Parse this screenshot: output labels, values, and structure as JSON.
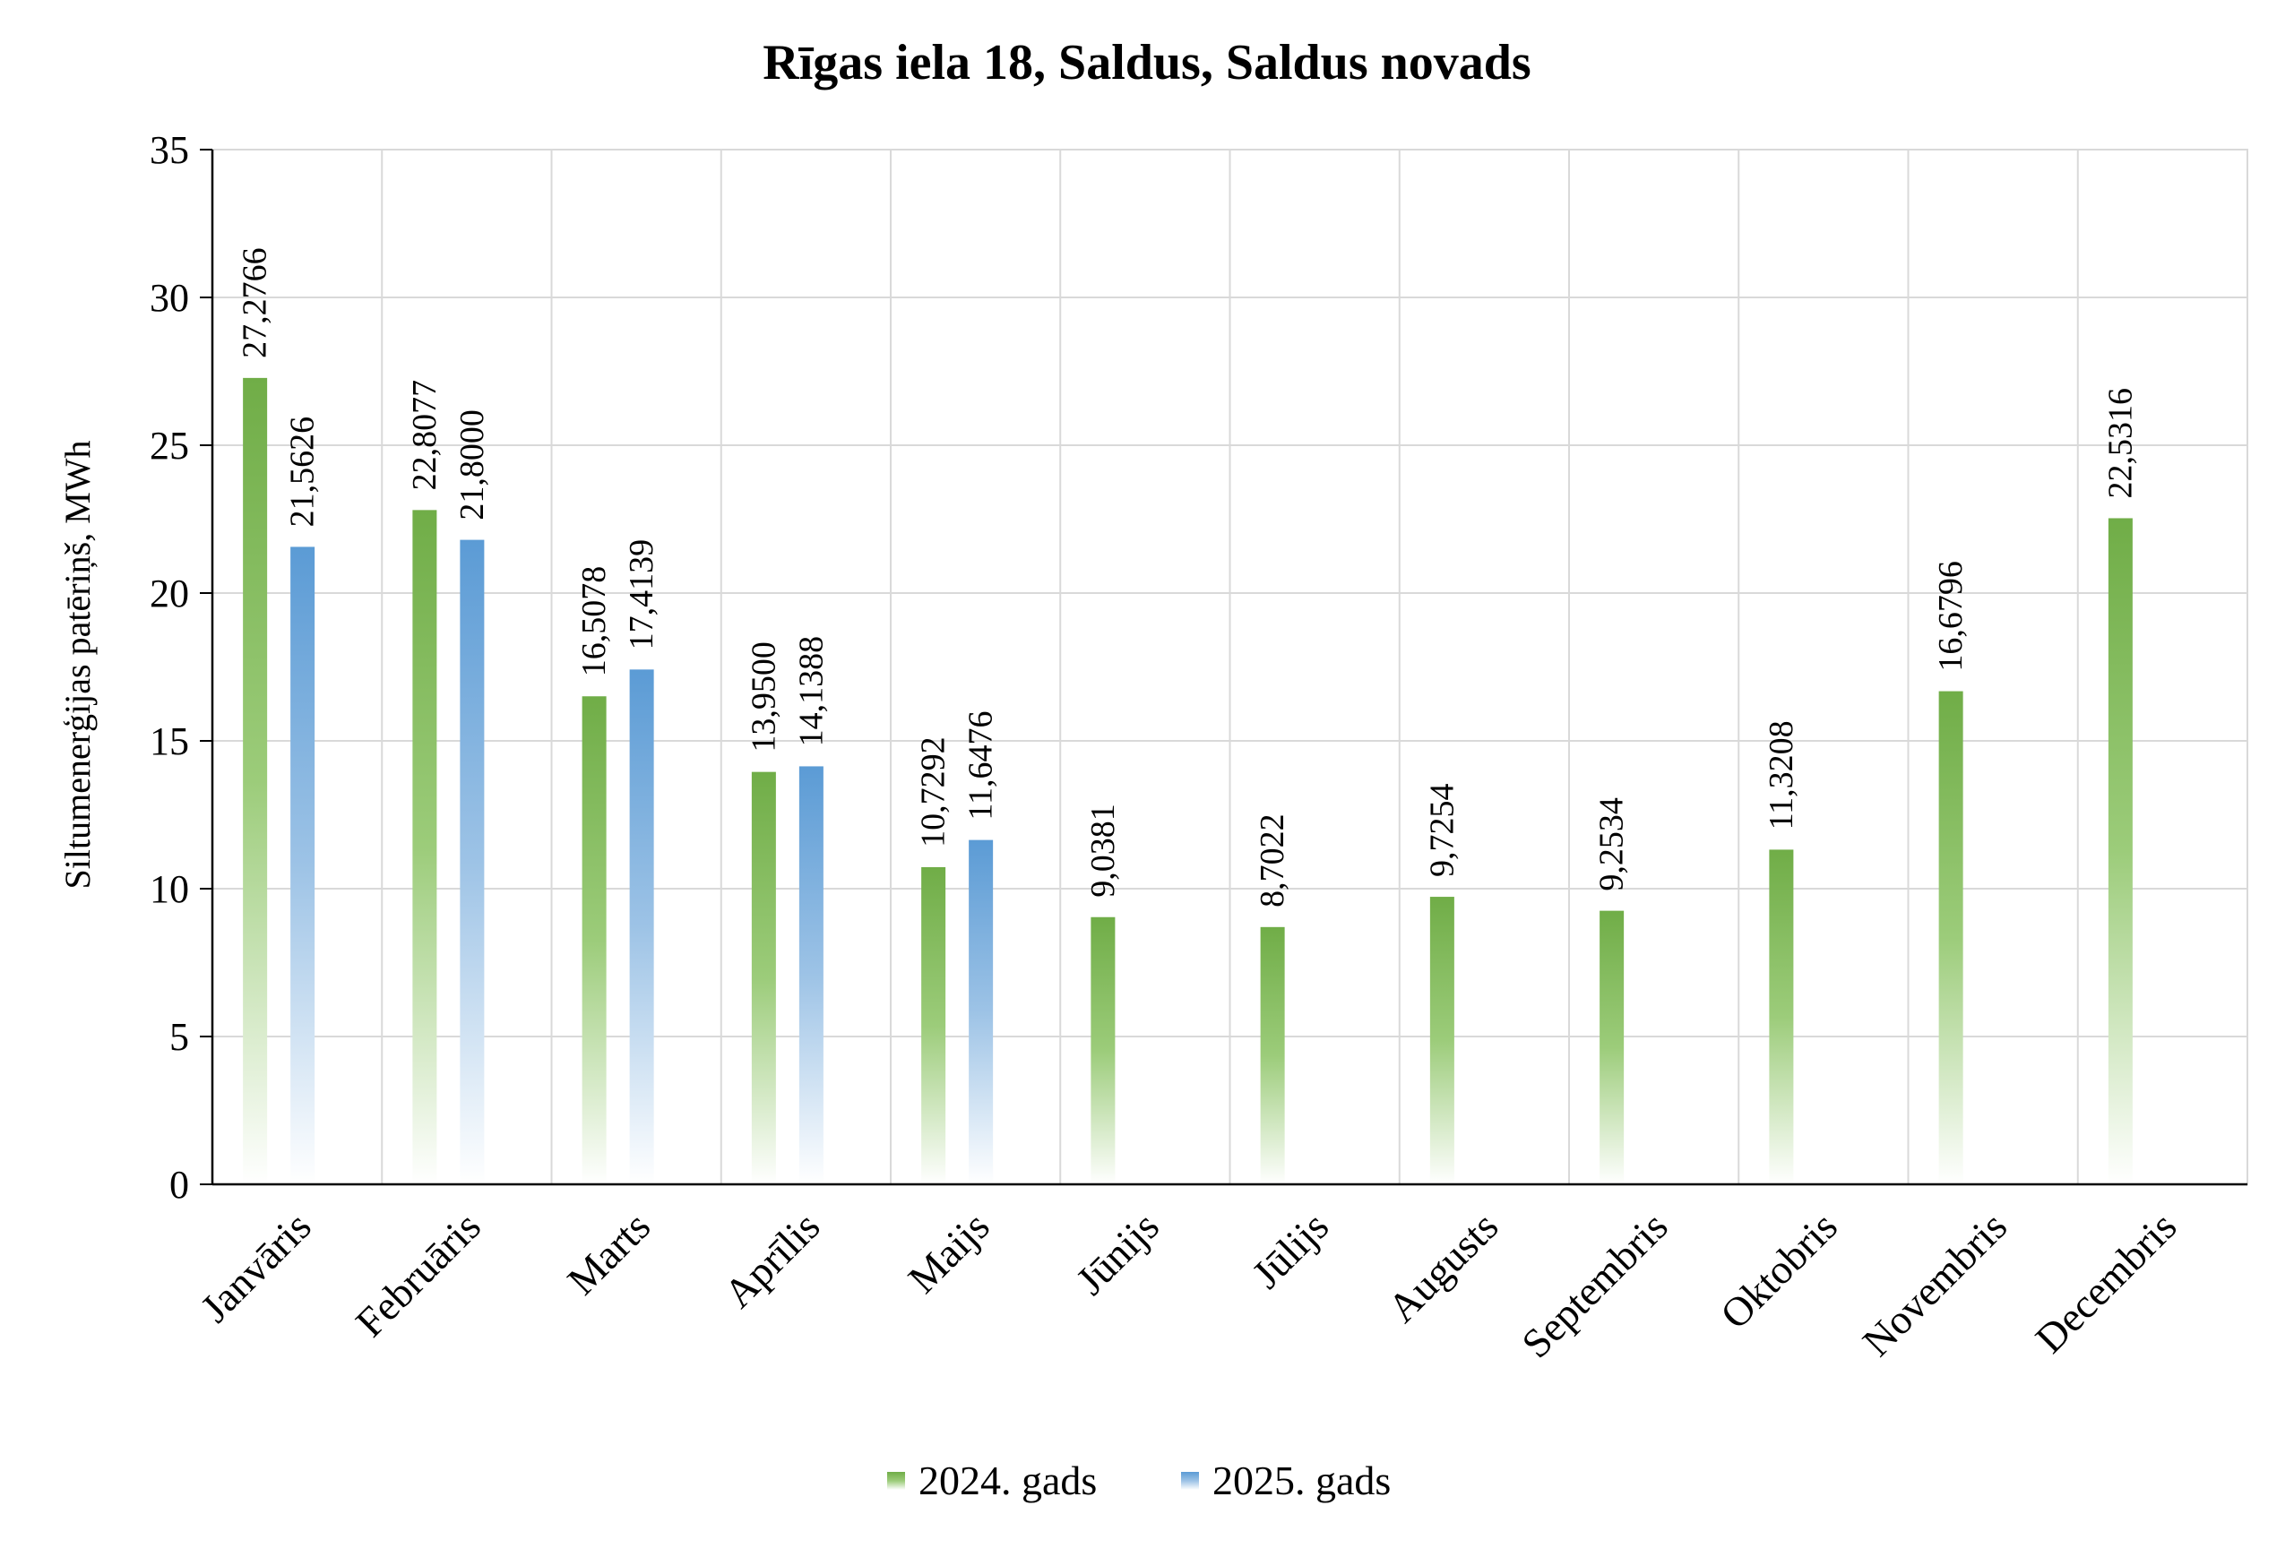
{
  "chart_data": {
    "type": "bar",
    "title": "Rīgas iela 18, Saldus, Saldus novads",
    "xlabel": "",
    "ylabel": "Siltumenerģijas patēriņš, MWh",
    "ylim": [
      0,
      35
    ],
    "yticks": [
      "0",
      "5",
      "10",
      "15",
      "20",
      "25",
      "30",
      "35"
    ],
    "ytick_values": [
      0,
      5,
      10,
      15,
      20,
      25,
      30,
      35
    ],
    "categories": [
      "Janvāris",
      "Februāris",
      "Marts",
      "Aprīlis",
      "Maijs",
      "Jūnijs",
      "Jūlijs",
      "Augusts",
      "Septembris",
      "Oktobris",
      "Novembris",
      "Decembris"
    ],
    "series": [
      {
        "name": "2024. gads",
        "color": "#70ad47",
        "values": [
          27.2766,
          22.8077,
          16.5078,
          13.95,
          10.7292,
          9.0381,
          8.7022,
          9.7254,
          9.2534,
          11.3208,
          16.6796,
          22.5316
        ],
        "labels": [
          "27,2766",
          "22,8077",
          "16,5078",
          "13,9500",
          "10,7292",
          "9,0381",
          "8,7022",
          "9,7254",
          "9,2534",
          "11,3208",
          "16,6796",
          "22,5316"
        ]
      },
      {
        "name": "2025. gads",
        "color": "#5b9bd5",
        "values": [
          21.5626,
          21.8,
          17.4139,
          14.1388,
          11.6476,
          null,
          null,
          null,
          null,
          null,
          null,
          null
        ],
        "labels": [
          "21,5626",
          "21,8000",
          "17,4139",
          "14,1388",
          "11,6476",
          null,
          null,
          null,
          null,
          null,
          null,
          null
        ]
      }
    ],
    "grid": true,
    "legend_position": "bottom"
  }
}
